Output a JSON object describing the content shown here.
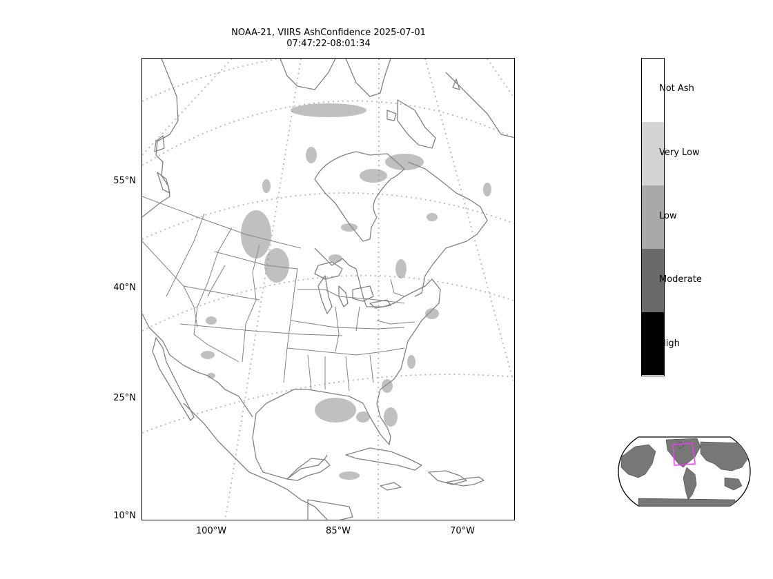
{
  "title": {
    "line1": "NOAA-21, VIIRS AshConfidence 2025-07-01",
    "line2": "07:47:22-08:01:34"
  },
  "map": {
    "lat_labels": [
      "55°N",
      "40°N",
      "25°N",
      "10°N"
    ],
    "lon_labels": [
      "100°W",
      "85°W",
      "70°W"
    ],
    "coastline_color": "#808080",
    "graticule_color": "#bbbbbb",
    "ash_speckle_color": "#8c8c8c"
  },
  "colorbar": {
    "categories": [
      {
        "label": "Not Ash",
        "color": "#ffffff"
      },
      {
        "label": "Very Low",
        "color": "#d3d3d3"
      },
      {
        "label": "Low",
        "color": "#a9a9a9"
      },
      {
        "label": "Moderate",
        "color": "#696969"
      },
      {
        "label": "High",
        "color": "#000000"
      }
    ]
  },
  "inset": {
    "land_color": "#777777",
    "highlight_color": "#ff33ff"
  }
}
